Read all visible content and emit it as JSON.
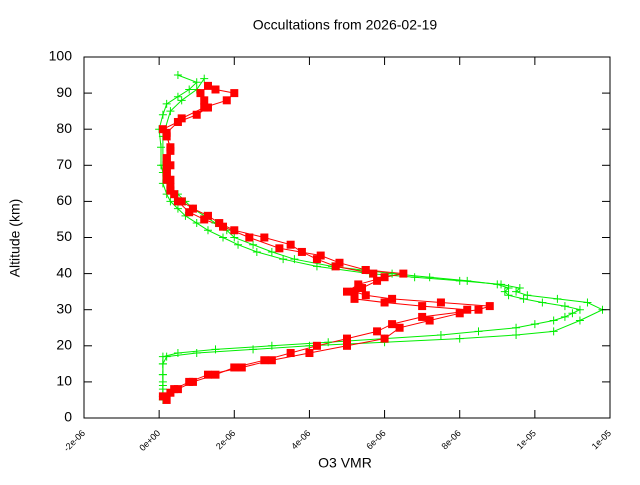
{
  "chart_data": {
    "type": "line",
    "title": "Occultations from 2026-02-19",
    "x_label": "O3 VMR",
    "y_label": "Altitude (km)",
    "xlim": [
      -2e-06,
      1.2e-05
    ],
    "xticks": [
      {
        "value": -2e-06,
        "label": "-2e-06"
      },
      {
        "value": 0,
        "label": "0e+00"
      },
      {
        "value": 2e-06,
        "label": "2e-06"
      },
      {
        "value": 4e-06,
        "label": "4e-06"
      },
      {
        "value": 6e-06,
        "label": "6e-06"
      },
      {
        "value": 8e-06,
        "label": "8e-06"
      },
      {
        "value": 1e-05,
        "label": "1e-05"
      },
      {
        "value": 1.2e-05,
        "label": "1e-05"
      }
    ],
    "ylim": [
      0,
      100
    ],
    "yticks": [
      0,
      10,
      20,
      30,
      40,
      50,
      60,
      70,
      80,
      90,
      100
    ],
    "series": [
      {
        "color": "#00ee00",
        "marker": "plus",
        "x": [
          1e-07,
          1e-07,
          1e-07,
          1e-07,
          1e-07,
          1e-07,
          5e-07,
          1.5e-06,
          3e-06,
          4.5e-06,
          6e-06,
          7.5e-06,
          8.5e-06,
          9.5e-06,
          1e-05,
          1.05e-05,
          1.08e-05,
          1.1e-05,
          1.12e-05,
          1.08e-05,
          1.02e-05,
          9.7e-06,
          9.3e-06,
          9.2e-06,
          9.3e-06,
          9e-06,
          8.2e-06,
          7.2e-06,
          6.2e-06,
          5.4e-06,
          4.6e-06,
          3.6e-06,
          3e-06,
          2.5e-06,
          2e-06,
          1.8e-06,
          1.5e-06,
          1.2e-06,
          9e-07,
          7e-07,
          5e-07,
          3e-07,
          2e-07,
          1e-07,
          5e-08,
          5e-08,
          0,
          1e-07,
          2e-07,
          5e-07,
          8e-07,
          1e-06,
          5e-07
        ],
        "values": [
          5,
          8,
          10,
          12,
          15,
          17,
          18,
          19,
          20,
          21,
          22,
          23,
          24,
          25,
          26,
          27,
          28,
          29,
          30,
          31,
          32,
          33,
          34,
          35,
          36,
          37,
          38,
          39,
          40,
          41,
          42,
          44,
          46,
          48,
          50,
          52,
          54,
          56,
          58,
          60,
          62,
          64,
          66,
          68,
          70,
          75,
          80,
          84,
          87,
          89,
          91,
          93,
          95
        ]
      },
      {
        "color": "#00ee00",
        "marker": "plus",
        "x": [
          1e-07,
          1e-07,
          1e-07,
          1e-07,
          2e-07,
          1e-06,
          2.5e-06,
          4e-06,
          6e-06,
          8e-06,
          9.5e-06,
          1.05e-05,
          1.12e-05,
          1.18e-05,
          1.14e-05,
          1.06e-05,
          9.8e-06,
          9.5e-06,
          9.6e-06,
          9.1e-06,
          8e-06,
          6.8e-06,
          5.6e-06,
          4.2e-06,
          3.3e-06,
          2.6e-06,
          2.1e-06,
          1.7e-06,
          1.3e-06,
          1e-06,
          7e-07,
          5e-07,
          3e-07,
          2e-07,
          1e-07,
          1e-07,
          1e-07,
          3e-07,
          6e-07,
          1e-06,
          1.2e-06
        ],
        "values": [
          6,
          9,
          12,
          15,
          17,
          18,
          19,
          20,
          21,
          22,
          23,
          24,
          27,
          30,
          32,
          33,
          34,
          35,
          36,
          37,
          38,
          39,
          40,
          42,
          44,
          46,
          48,
          50,
          52,
          54,
          56,
          58,
          60,
          62,
          65,
          70,
          78,
          85,
          88,
          91,
          94
        ]
      },
      {
        "color": "#ff0000",
        "marker": "square",
        "x": [
          1e-07,
          3e-07,
          5e-07,
          9e-07,
          1.5e-06,
          2e-06,
          2.8e-06,
          3.5e-06,
          4.2e-06,
          5e-06,
          5.8e-06,
          6.2e-06,
          7e-06,
          8.5e-06,
          8.8e-06,
          7.5e-06,
          6.2e-06,
          5.5e-06,
          5.2e-06,
          5.4e-06,
          5.8e-06,
          5.7e-06,
          4.7e-06,
          4.2e-06,
          3.8e-06,
          3.5e-06,
          2.8e-06,
          2e-06,
          1.6e-06,
          1.3e-06,
          9e-07,
          6e-07,
          4e-07,
          3e-07,
          2e-07,
          2e-07,
          2e-07,
          2e-07,
          3e-07,
          2e-07,
          1e-07,
          5e-07,
          1e-06,
          1.3e-06,
          1.2e-06,
          1.1e-06,
          1.3e-06
        ],
        "values": [
          6,
          7,
          8,
          10,
          12,
          14,
          16,
          18,
          20,
          22,
          24,
          26,
          28,
          30,
          31,
          32,
          33,
          34,
          35,
          36,
          38,
          40,
          42,
          44,
          46,
          48,
          50,
          52,
          54,
          56,
          58,
          60,
          62,
          64,
          66,
          68,
          70,
          72,
          75,
          78,
          80,
          82,
          84,
          86,
          88,
          90,
          92
        ]
      },
      {
        "color": "#ff0000",
        "marker": "square",
        "x": [
          2e-07,
          4e-07,
          8e-07,
          1.3e-06,
          2.2e-06,
          3e-06,
          4e-06,
          5e-06,
          6e-06,
          6.4e-06,
          7.2e-06,
          8e-06,
          8.2e-06,
          7e-06,
          6e-06,
          5.2e-06,
          5e-06,
          5.3e-06,
          6e-06,
          6.5e-06,
          5.5e-06,
          4.8e-06,
          4.3e-06,
          3.2e-06,
          2.4e-06,
          1.7e-06,
          1.2e-06,
          8e-07,
          5e-07,
          3e-07,
          3e-07,
          3e-07,
          3e-07,
          2e-07,
          6e-07,
          1.2e-06,
          1.8e-06,
          2e-06,
          1.5e-06
        ],
        "values": [
          5,
          8,
          10,
          12,
          14,
          16,
          18,
          20,
          22,
          25,
          27,
          29,
          30,
          31,
          32,
          33,
          35,
          37,
          39,
          40,
          41,
          43,
          45,
          47,
          50,
          53,
          55,
          57,
          60,
          63,
          66,
          70,
          74,
          79,
          83,
          86,
          88,
          90,
          91
        ]
      }
    ]
  }
}
